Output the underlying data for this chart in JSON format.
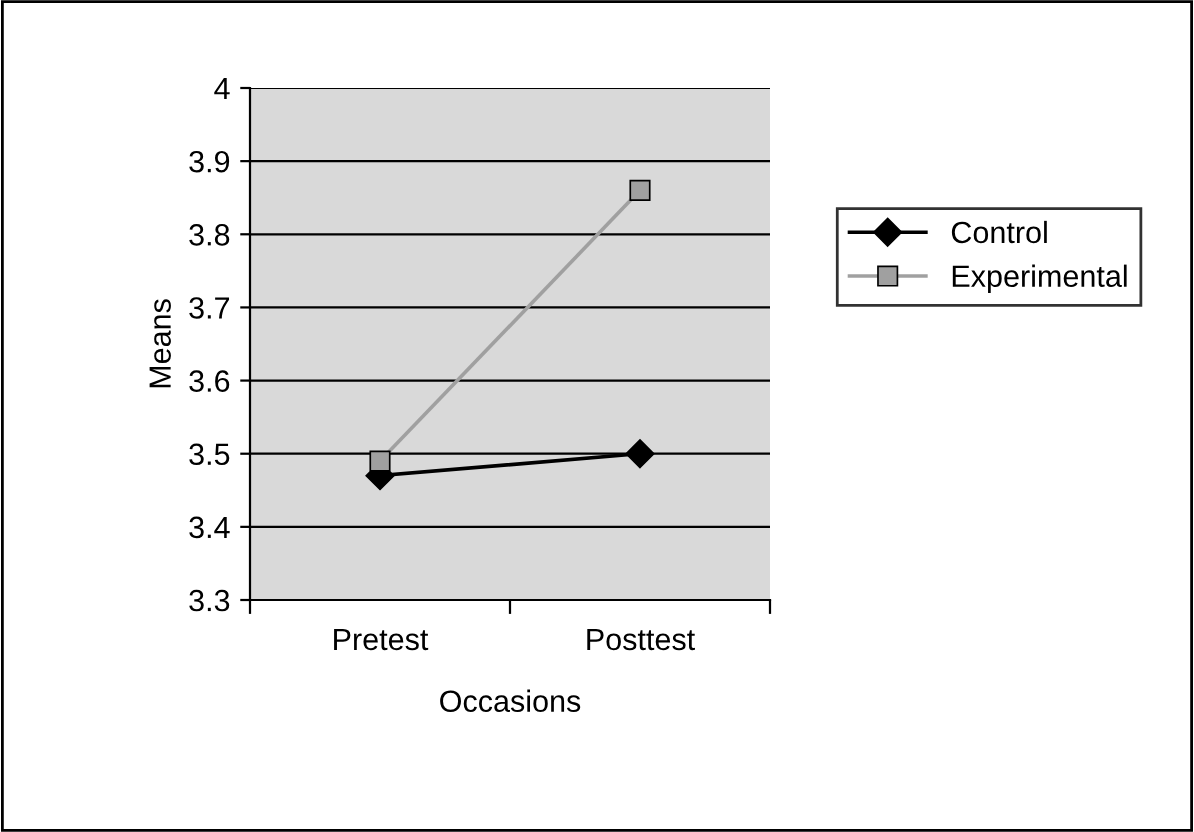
{
  "chart_data": {
    "type": "line",
    "xlabel": "Occasions",
    "ylabel": "Means",
    "categories": [
      "Pretest",
      "Posttest"
    ],
    "series": [
      {
        "name": "Control",
        "color": "#000000",
        "values": [
          3.47,
          3.5
        ],
        "marker": "diamond"
      },
      {
        "name": "Experimental",
        "color": "#a0a0a0",
        "values": [
          3.49,
          3.86
        ],
        "marker": "square"
      }
    ],
    "ylim": [
      3.3,
      4
    ],
    "yticks": [
      3.3,
      3.4,
      3.5,
      3.6,
      3.7,
      3.8,
      3.9,
      4
    ],
    "grid": "y",
    "legend": "right"
  }
}
